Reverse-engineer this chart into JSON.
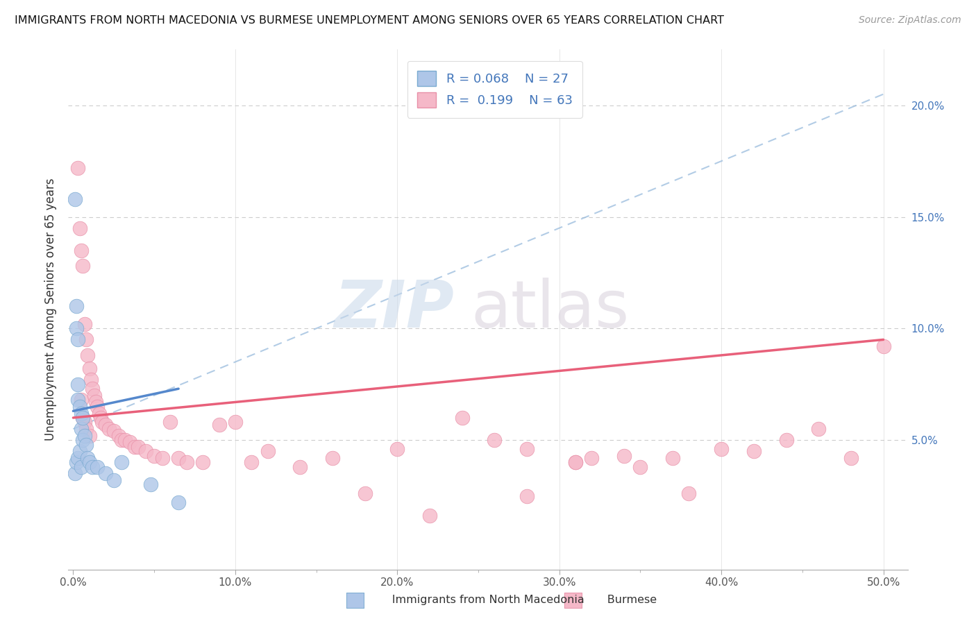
{
  "title": "IMMIGRANTS FROM NORTH MACEDONIA VS BURMESE UNEMPLOYMENT AMONG SENIORS OVER 65 YEARS CORRELATION CHART",
  "source": "Source: ZipAtlas.com",
  "ylabel": "Unemployment Among Seniors over 65 years",
  "xlim": [
    -0.003,
    0.515
  ],
  "ylim": [
    -0.008,
    0.225
  ],
  "xtick_vals": [
    0.0,
    0.1,
    0.2,
    0.3,
    0.4,
    0.5
  ],
  "xtick_labels": [
    "0.0%",
    "10.0%",
    "20.0%",
    "30.0%",
    "40.0%",
    "50.0%"
  ],
  "ytick_vals": [
    0.05,
    0.1,
    0.15,
    0.2
  ],
  "ytick_labels": [
    "5.0%",
    "10.0%",
    "15.0%",
    "20.0%"
  ],
  "color_blue_fill": "#aec6e8",
  "color_blue_edge": "#7aaad0",
  "color_pink_fill": "#f5b8c8",
  "color_pink_edge": "#e890a8",
  "color_blue_line": "#5588cc",
  "color_pink_line": "#e8607a",
  "color_dashed": "#99bbdd",
  "color_grid": "#cccccc",
  "color_text_blue": "#4477bb",
  "color_text_dark": "#333333",
  "color_source": "#999999",
  "legend_entries": [
    {
      "r": "R = 0.068",
      "n": "N = 27"
    },
    {
      "r": "R =  0.199",
      "n": "N = 63"
    }
  ],
  "blue_x": [
    0.001,
    0.001,
    0.002,
    0.002,
    0.002,
    0.003,
    0.003,
    0.003,
    0.003,
    0.004,
    0.004,
    0.005,
    0.005,
    0.005,
    0.006,
    0.006,
    0.007,
    0.008,
    0.009,
    0.01,
    0.012,
    0.015,
    0.02,
    0.025,
    0.03,
    0.048,
    0.065
  ],
  "blue_y": [
    0.158,
    0.035,
    0.11,
    0.1,
    0.04,
    0.095,
    0.075,
    0.068,
    0.042,
    0.065,
    0.045,
    0.062,
    0.055,
    0.038,
    0.06,
    0.05,
    0.052,
    0.048,
    0.042,
    0.04,
    0.038,
    0.038,
    0.035,
    0.032,
    0.04,
    0.03,
    0.022
  ],
  "pink_x": [
    0.003,
    0.004,
    0.005,
    0.005,
    0.006,
    0.006,
    0.007,
    0.007,
    0.008,
    0.008,
    0.009,
    0.01,
    0.01,
    0.011,
    0.012,
    0.013,
    0.014,
    0.015,
    0.016,
    0.017,
    0.018,
    0.02,
    0.022,
    0.025,
    0.028,
    0.03,
    0.032,
    0.035,
    0.038,
    0.04,
    0.045,
    0.05,
    0.055,
    0.06,
    0.065,
    0.07,
    0.08,
    0.09,
    0.1,
    0.11,
    0.12,
    0.14,
    0.16,
    0.18,
    0.2,
    0.22,
    0.24,
    0.26,
    0.28,
    0.31,
    0.34,
    0.35,
    0.37,
    0.38,
    0.4,
    0.42,
    0.44,
    0.46,
    0.48,
    0.5,
    0.31,
    0.32,
    0.28
  ],
  "pink_y": [
    0.172,
    0.145,
    0.135,
    0.068,
    0.128,
    0.06,
    0.102,
    0.058,
    0.095,
    0.055,
    0.088,
    0.082,
    0.052,
    0.077,
    0.073,
    0.07,
    0.067,
    0.065,
    0.062,
    0.06,
    0.058,
    0.057,
    0.055,
    0.054,
    0.052,
    0.05,
    0.05,
    0.049,
    0.047,
    0.047,
    0.045,
    0.043,
    0.042,
    0.058,
    0.042,
    0.04,
    0.04,
    0.057,
    0.058,
    0.04,
    0.045,
    0.038,
    0.042,
    0.026,
    0.046,
    0.016,
    0.06,
    0.05,
    0.046,
    0.04,
    0.043,
    0.038,
    0.042,
    0.026,
    0.046,
    0.045,
    0.05,
    0.055,
    0.042,
    0.092,
    0.04,
    0.042,
    0.025
  ],
  "blue_line_x0": 0.0,
  "blue_line_x1": 0.065,
  "blue_line_y0": 0.063,
  "blue_line_y1": 0.073,
  "pink_line_x0": 0.0,
  "pink_line_x1": 0.5,
  "pink_line_y0": 0.06,
  "pink_line_y1": 0.095,
  "dashed_line_x0": 0.0,
  "dashed_line_x1": 0.5,
  "dashed_line_y0": 0.055,
  "dashed_line_y1": 0.205
}
